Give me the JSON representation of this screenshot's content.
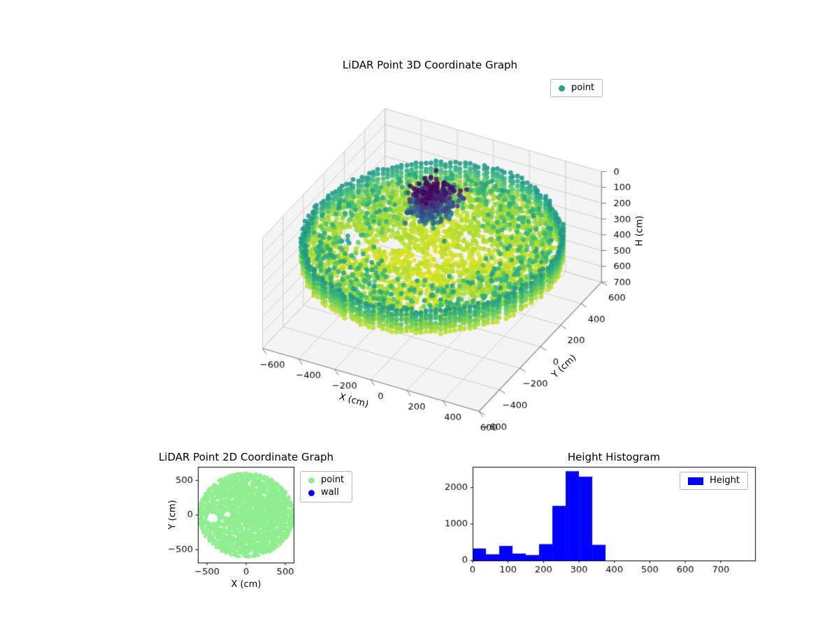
{
  "figure": {
    "background": "#ffffff"
  },
  "chart_data": [
    {
      "id": "lidar-3d",
      "type": "scatter",
      "projection": "3d",
      "title": "LiDAR Point 3D Coordinate Graph",
      "xlabel": "X (cm)",
      "ylabel": "Y (cm)",
      "zlabel": "H (cm)",
      "xticks": [
        -600,
        -400,
        -200,
        0,
        200,
        400,
        600
      ],
      "yticks": [
        -600,
        -400,
        -200,
        0,
        200,
        400,
        600
      ],
      "zticks": [
        0,
        100,
        200,
        300,
        400,
        500,
        600,
        700
      ],
      "xlim": [
        -600,
        600
      ],
      "ylim": [
        -600,
        600
      ],
      "zlim": [
        0,
        700
      ],
      "zaxis_inverted": true,
      "grid": true,
      "colormap": "viridis",
      "legend": {
        "position": "upper right",
        "entries": [
          {
            "label": "point",
            "color": "#2aa187",
            "marker": "circle"
          }
        ]
      },
      "point_cloud_summary": {
        "description": "circular LiDAR room scan colored by height (viridis: low=dark purple, high=yellow)",
        "floor_disc": {
          "radius_cm": 600,
          "height_range_cm": [
            300,
            375
          ]
        },
        "wall_rim": {
          "radius_cm": 615,
          "height_range_cm": [
            197,
            345
          ]
        },
        "ceiling_cluster": {
          "center_cm": [
            -70,
            130
          ],
          "height_range_cm": [
            10,
            200
          ]
        },
        "holes_cm": [
          [
            -430,
            -40,
            70
          ],
          [
            -240,
            10,
            48
          ]
        ]
      }
    },
    {
      "id": "lidar-2d",
      "type": "scatter",
      "title": "LiDAR Point 2D Coordinate Graph",
      "xlabel": "X (cm)",
      "ylabel": "Y (cm)",
      "xticks": [
        -500,
        0,
        500
      ],
      "yticks": [
        -500,
        0,
        500
      ],
      "xlim": [
        -617,
        607
      ],
      "ylim": [
        -685,
        695
      ],
      "grid": false,
      "legend": {
        "position": "upper right outside",
        "entries": [
          {
            "label": "point",
            "color": "#90ee90",
            "marker": "circle"
          },
          {
            "label": "wall",
            "color": "#0000ff",
            "marker": "circle"
          }
        ]
      },
      "disc": {
        "radius_cm": 612,
        "color": "#90ee90"
      }
    },
    {
      "id": "height-histogram",
      "type": "bar",
      "title": "Height Histogram",
      "xticks": [
        0,
        100,
        200,
        300,
        400,
        500,
        600,
        700
      ],
      "yticks": [
        0,
        1000,
        2000
      ],
      "xlim": [
        0,
        797
      ],
      "ylim": [
        0,
        2570
      ],
      "grid": false,
      "bar_color": "#0000ff",
      "bin_edges": [
        0,
        37.5,
        75,
        112.5,
        150,
        187.5,
        225,
        262.5,
        300,
        337.5,
        375
      ],
      "counts": [
        330,
        170,
        400,
        190,
        150,
        450,
        1500,
        2450,
        2300,
        430
      ],
      "legend": {
        "position": "upper right",
        "entries": [
          {
            "label": "Height",
            "color": "#0000ff",
            "marker": "rect"
          }
        ]
      }
    }
  ]
}
